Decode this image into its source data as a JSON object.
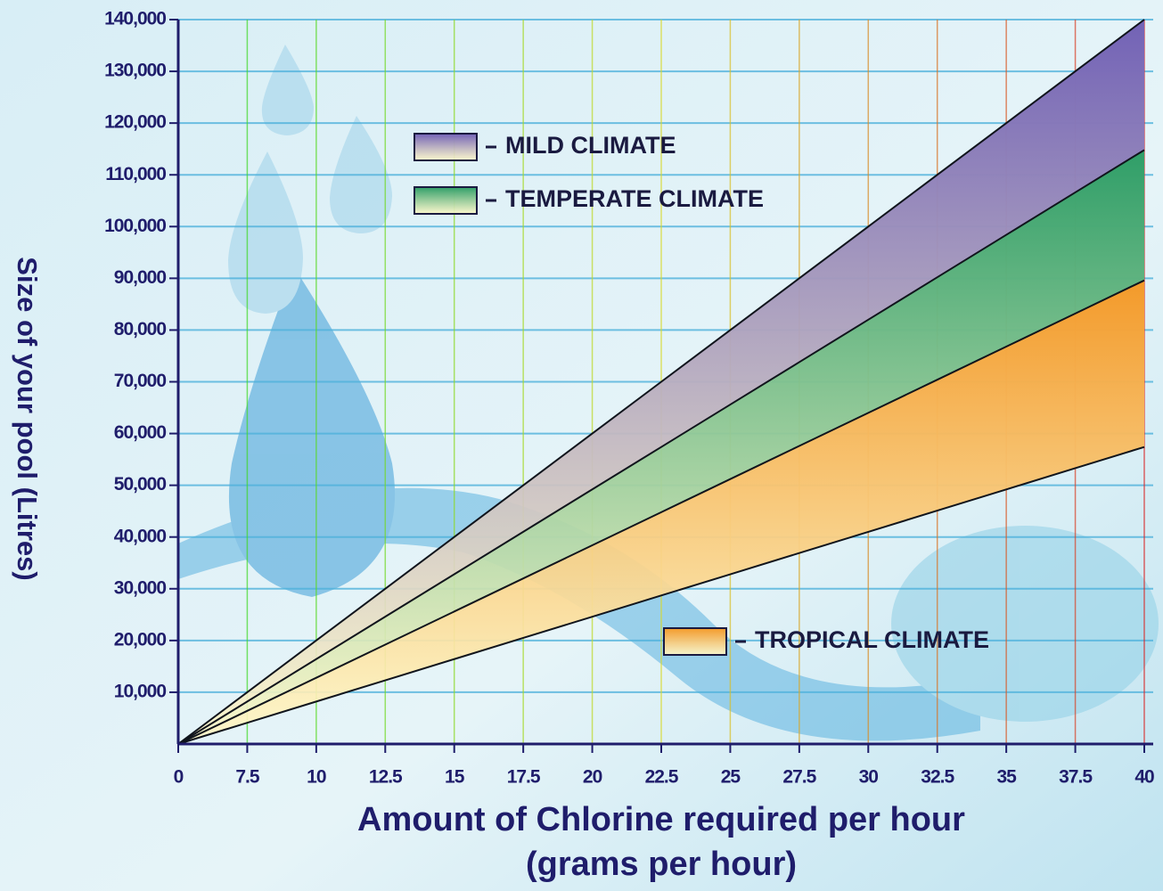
{
  "chart_data": {
    "type": "area",
    "x_label": "Amount of Chlorine required per hour",
    "x_sublabel": "(grams per hour)",
    "y_label": "Size of your pool (Litres)",
    "categories": [
      "0",
      "7.5",
      "10",
      "12.5",
      "15",
      "17.5",
      "20",
      "22.5",
      "25",
      "27.5",
      "30",
      "32.5",
      "35",
      "37.5",
      "40"
    ],
    "series": [
      {
        "name": "MILD CLIMATE",
        "color": "#7262b6",
        "values": [
          0,
          10000,
          20000,
          30000,
          40000,
          50000,
          60000,
          70000,
          80000,
          90000,
          100000,
          110000,
          120000,
          130000,
          140000
        ]
      },
      {
        "name": "TEMPERATE CLIMATE",
        "color": "#2f9e68",
        "values": [
          0,
          8200,
          16400,
          24600,
          32800,
          41000,
          49200,
          57400,
          65600,
          73800,
          82000,
          90200,
          98400,
          106600,
          114800
        ]
      },
      {
        "name": "TROPICAL CLIMATE",
        "color": "#f39a2a",
        "values": [
          0,
          6400,
          12800,
          19200,
          25600,
          32000,
          38400,
          44800,
          51200,
          57600,
          64000,
          70400,
          76800,
          83200,
          89600
        ]
      }
    ],
    "baseline": [
      0,
      4100,
      8200,
      12300,
      16400,
      20500,
      24600,
      28700,
      32800,
      36900,
      41000,
      45100,
      49200,
      53300,
      57400
    ],
    "ylim": [
      0,
      140000
    ],
    "yticks": [
      {
        "value": 10000,
        "label": "10,000"
      },
      {
        "value": 20000,
        "label": "20,000"
      },
      {
        "value": 30000,
        "label": "30,000"
      },
      {
        "value": 40000,
        "label": "40,000"
      },
      {
        "value": 50000,
        "label": "50,000"
      },
      {
        "value": 60000,
        "label": "60,000"
      },
      {
        "value": 70000,
        "label": "70,000"
      },
      {
        "value": 80000,
        "label": "80,000"
      },
      {
        "value": 90000,
        "label": "90,000"
      },
      {
        "value": 100000,
        "label": "100,000"
      },
      {
        "value": 110000,
        "label": "110,000"
      },
      {
        "value": 120000,
        "label": "120,000"
      },
      {
        "value": 130000,
        "label": "130,000"
      },
      {
        "value": 140000,
        "label": "140,000"
      }
    ],
    "grid": true
  }
}
